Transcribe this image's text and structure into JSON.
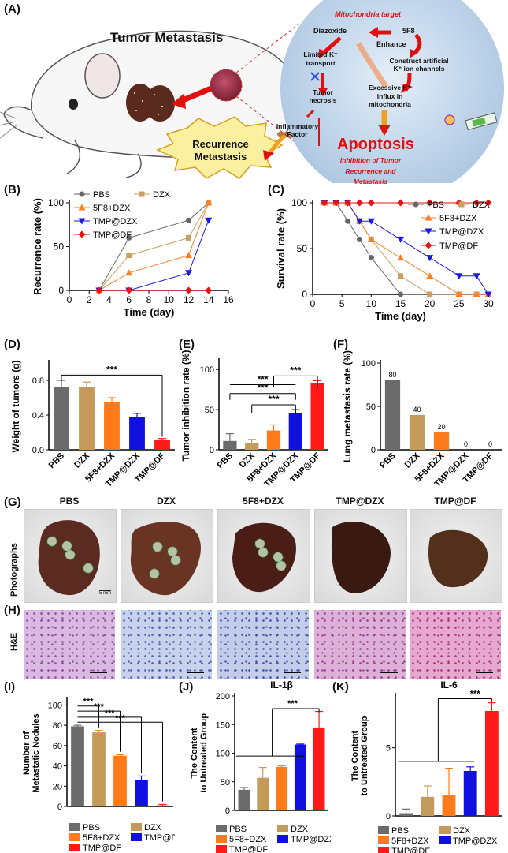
{
  "panel_labels": {
    "a": "(A)",
    "b": "(B)",
    "c": "(C)",
    "d": "(D)",
    "e": "(E)",
    "f": "(F)",
    "g": "(G)",
    "h": "(H)",
    "i": "(I)",
    "j": "(J)",
    "k": "(K)"
  },
  "schematic": {
    "tumor_metastasis": "Tumor Metastasis",
    "mito_target": "Mitochondria target",
    "diazoxide": "Diazoxide",
    "fivef8": "5F8",
    "enhance": "Enhance",
    "limited_k1": "Limited K⁺",
    "limited_k2": "transport",
    "construct1": "Construct artificial",
    "construct2": "K⁺ ion channels",
    "tumor_necrosis1": "Tumor",
    "tumor_necrosis2": "necrosis",
    "excessive1": "Excessive K⁺",
    "excessive2": "influx in",
    "excessive3": "mitochondria",
    "inflammatory1": "Inflammatory",
    "inflammatory2": "Factor",
    "apoptosis": "Apoptosis",
    "inhibition1": "Inhibition of Tumor",
    "inhibition2": "Recurrence and",
    "inhibition3": "Metastasis",
    "recurrence1": "Recurrence",
    "recurrence2": "Metastasis"
  },
  "colors": {
    "pbs": "#666666",
    "dzx": "#c8a060",
    "f58": "#ff7f27",
    "tmpdzx": "#1a1adf",
    "tmpdf": "#ee1111",
    "gray": "#6b6b6b",
    "tan": "#c49a5a",
    "orange": "#ff7a1a",
    "blue": "#1010e0",
    "red": "#ff1a1a"
  },
  "chart_data": [
    {
      "id": "B",
      "type": "line",
      "ylabel": "Recurrence rate (%)",
      "xlabel": "Time (day)",
      "xlim": [
        0,
        16
      ],
      "ylim": [
        0,
        100
      ],
      "xticks": [
        "0",
        "2",
        "4",
        "6",
        "8",
        "10",
        "12",
        "14",
        "16"
      ],
      "yticks": [
        "0",
        "50",
        "100"
      ],
      "series": [
        {
          "name": "PBS",
          "x": [
            3,
            6,
            12,
            14
          ],
          "values": [
            0,
            60,
            80,
            100
          ]
        },
        {
          "name": "DZX",
          "x": [
            3,
            6,
            12,
            14
          ],
          "values": [
            0,
            40,
            60,
            100
          ]
        },
        {
          "name": "5F8+DZX",
          "x": [
            3,
            6,
            12,
            14
          ],
          "values": [
            0,
            20,
            40,
            100
          ]
        },
        {
          "name": "TMP@DZX",
          "x": [
            3,
            6,
            12,
            14
          ],
          "values": [
            0,
            0,
            20,
            80
          ]
        },
        {
          "name": "TMP@DF",
          "x": [
            3,
            6,
            12,
            14
          ],
          "values": [
            0,
            0,
            0,
            0
          ]
        }
      ]
    },
    {
      "id": "C",
      "type": "line",
      "ylabel": "Survival rate (%)",
      "xlabel": "Time (day)",
      "xlim": [
        0,
        30
      ],
      "ylim": [
        0,
        100
      ],
      "xticks": [
        "0",
        "5",
        "10",
        "15",
        "20",
        "25",
        "30"
      ],
      "yticks": [
        "0",
        "50",
        "100"
      ],
      "series": [
        {
          "name": "PBS",
          "x": [
            2,
            4,
            6,
            8,
            10,
            15,
            20,
            25,
            28,
            30
          ],
          "values": [
            100,
            100,
            80,
            60,
            40,
            0,
            0,
            0,
            0,
            0
          ]
        },
        {
          "name": "DZX",
          "x": [
            2,
            4,
            6,
            8,
            10,
            15,
            20,
            25,
            28,
            30
          ],
          "values": [
            100,
            100,
            100,
            80,
            60,
            20,
            0,
            0,
            0,
            0
          ]
        },
        {
          "name": "5F8+DZX",
          "x": [
            2,
            4,
            6,
            8,
            10,
            15,
            20,
            25,
            28,
            30
          ],
          "values": [
            100,
            100,
            100,
            80,
            60,
            40,
            20,
            0,
            0,
            0
          ]
        },
        {
          "name": "TMP@DZX",
          "x": [
            2,
            4,
            6,
            8,
            10,
            15,
            20,
            25,
            28,
            30
          ],
          "values": [
            100,
            100,
            100,
            80,
            80,
            60,
            40,
            20,
            20,
            0
          ]
        },
        {
          "name": "TMP@DF",
          "x": [
            2,
            4,
            6,
            8,
            10,
            15,
            20,
            25,
            28,
            30
          ],
          "values": [
            100,
            100,
            100,
            100,
            100,
            100,
            100,
            100,
            100,
            100
          ]
        }
      ]
    },
    {
      "id": "D",
      "type": "bar",
      "ylabel": "Weight of tumors (g)",
      "categories": [
        "PBS",
        "DZX",
        "5F8+DZX",
        "TMP@DZX",
        "TMP@DF"
      ],
      "values": [
        0.72,
        0.72,
        0.55,
        0.38,
        0.11
      ],
      "errors": [
        0.08,
        0.06,
        0.05,
        0.04,
        0.02
      ],
      "ylim": [
        0,
        1.0
      ],
      "yticks": [
        "0.0",
        "0.4",
        "0.8"
      ],
      "sig": "***"
    },
    {
      "id": "E",
      "type": "bar",
      "ylabel": "Tumor inhibition rate (%)",
      "categories": [
        "PBS",
        "DZX",
        "5F8+DZX",
        "TMP@DZX",
        "TMP@DF"
      ],
      "values": [
        11,
        8,
        24,
        46,
        83
      ],
      "errors": [
        9,
        5,
        7,
        4,
        3
      ],
      "ylim": [
        0,
        110
      ],
      "yticks": [
        "0",
        "50",
        "100"
      ],
      "sig": "***"
    },
    {
      "id": "F",
      "type": "bar",
      "ylabel": "Lung metastasis rate (%)",
      "categories": [
        "PBS",
        "DZX",
        "5F8+DZX",
        "TMP@DZX",
        "TMP@DF"
      ],
      "values": [
        80,
        40,
        20,
        0,
        0
      ],
      "labels": [
        "80",
        "40",
        "20",
        "0",
        "0"
      ],
      "ylim": [
        0,
        100
      ],
      "yticks": [
        "0",
        "50",
        "100"
      ]
    },
    {
      "id": "I",
      "type": "bar",
      "ylabel": "Number of Metastatic Nodules",
      "categories": [
        "PBS",
        "DZX",
        "5F8+DZX",
        "TMP@DZX",
        "TMP@DF"
      ],
      "values": [
        79,
        73,
        50,
        26,
        1
      ],
      "errors": [
        1,
        2,
        1,
        4,
        1
      ],
      "ylim": [
        0,
        105
      ],
      "yticks": [
        "0",
        "20",
        "40",
        "60",
        "80",
        "100"
      ],
      "sig": "***"
    },
    {
      "id": "J",
      "type": "bar",
      "title": "IL-1β",
      "ylabel": "The Content to Untreated Group",
      "categories": [
        "PBS",
        "DZX",
        "5F8+DZX",
        "TMP@DZX",
        "TMP@DF"
      ],
      "values": [
        36,
        57,
        76,
        115,
        145
      ],
      "errors": [
        4,
        18,
        2,
        1,
        28
      ],
      "ylim": [
        0,
        200
      ],
      "yticks": [
        "0",
        "50",
        "100",
        "150",
        "200"
      ],
      "sig": "***"
    },
    {
      "id": "K",
      "type": "bar",
      "title": "IL-6",
      "ylabel": "The Content to Untreated Group",
      "categories": [
        "PBS",
        "DZX",
        "5F8+DZX",
        "TMP@DZX",
        "TMP@DF"
      ],
      "values": [
        0.2,
        1.4,
        1.5,
        3.3,
        7.7
      ],
      "errors": [
        0.3,
        0.8,
        2.0,
        0.3,
        0.6
      ],
      "ylim": [
        0,
        8.8
      ],
      "yticks": [
        "0",
        "5"
      ],
      "sig": "***"
    }
  ],
  "legend_names": {
    "pbs": "PBS",
    "dzx": "DZX",
    "f58": "5F8+DZX",
    "tmpdzx": "TMP@DZX",
    "tmpdf": "TMP@DF"
  },
  "photos": {
    "row_label_g": "Photographs",
    "row_label_h": "H&E",
    "groups": [
      "PBS",
      "DZX",
      "5F8+DZX",
      "TMP@DZX",
      "TMP@DF"
    ],
    "scale": "5 mm"
  }
}
